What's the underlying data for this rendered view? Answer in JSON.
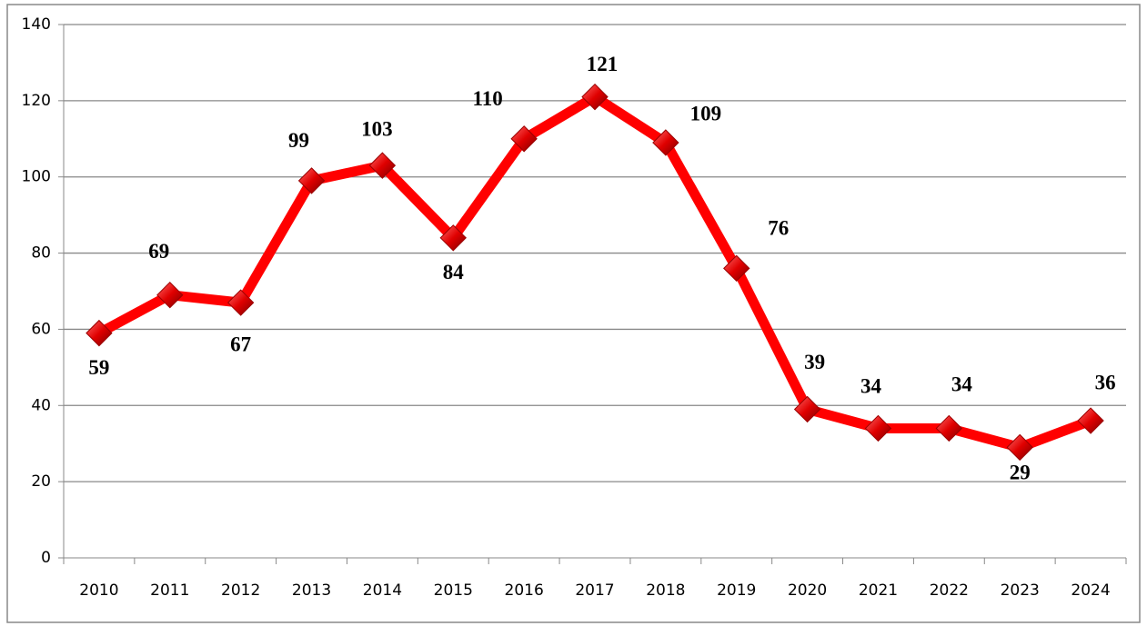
{
  "chart_data": {
    "type": "line",
    "categories": [
      "2010",
      "2011",
      "2012",
      "2013",
      "2014",
      "2015",
      "2016",
      "2017",
      "2018",
      "2019",
      "2020",
      "2021",
      "2022",
      "2023",
      "2024"
    ],
    "values": [
      59,
      69,
      67,
      99,
      103,
      84,
      110,
      121,
      109,
      76,
      39,
      34,
      34,
      29,
      36
    ],
    "color": "#ff0000",
    "ylim": [
      0,
      140
    ],
    "yticks": [
      0,
      20,
      40,
      60,
      80,
      100,
      120,
      140
    ],
    "grid": true
  }
}
